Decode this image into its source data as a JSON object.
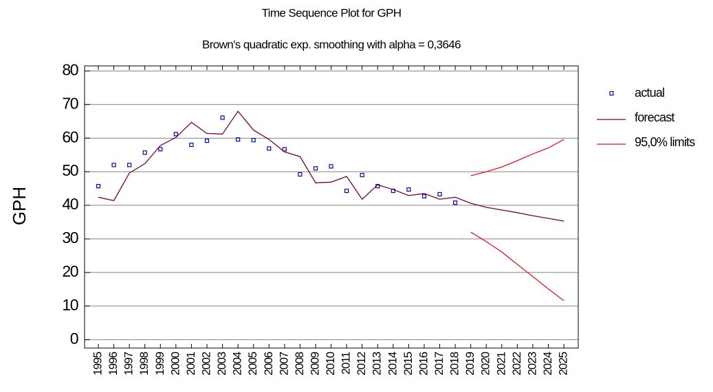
{
  "chart_data": {
    "type": "line",
    "title": "Time Sequence Plot for GPH",
    "subtitle": "Brown's quadratic exp. smoothing with alpha = 0,3646",
    "y_label": "GPH",
    "categories": [
      "1995",
      "1996",
      "1997",
      "1998",
      "1999",
      "2000",
      "2001",
      "2002",
      "2003",
      "2004",
      "2005",
      "2006",
      "2007",
      "2008",
      "2009",
      "2010",
      "2011",
      "2012",
      "2013",
      "2014",
      "2015",
      "2016",
      "2017",
      "2018",
      "2019",
      "2020",
      "2021",
      "2022",
      "2023",
      "2024",
      "2025"
    ],
    "series": [
      {
        "name": "actual",
        "color": "#0000cc",
        "marker": "square",
        "values": [
          45.7,
          52,
          52,
          55.7,
          56.7,
          61.2,
          58,
          59.2,
          66.1,
          59.6,
          59.4,
          56.9,
          56.7,
          49.2,
          51,
          51.6,
          44.3,
          49,
          45.7,
          44.3,
          44.7,
          42.7,
          43.3,
          40.8,
          null,
          null,
          null,
          null,
          null,
          null,
          null
        ]
      },
      {
        "name": "forecast",
        "color": "#7a0030",
        "marker": "line",
        "values": [
          42.4,
          41.4,
          49.6,
          52.4,
          57.8,
          60.2,
          64.7,
          61.4,
          61.2,
          68,
          62.4,
          59.6,
          55.9,
          54.5,
          46.7,
          46.9,
          48.6,
          41.8,
          46.1,
          44.7,
          42.9,
          43.5,
          41.8,
          42.4,
          40.6,
          39.4,
          38.6,
          37.8,
          36.9,
          36.1,
          35.3
        ]
      },
      {
        "name": "95,0% limits",
        "color": "#e8141e",
        "marker": "line",
        "upper": [
          null,
          null,
          null,
          null,
          null,
          null,
          null,
          null,
          null,
          null,
          null,
          null,
          null,
          null,
          null,
          null,
          null,
          null,
          null,
          null,
          null,
          null,
          null,
          null,
          48.8,
          50,
          51.4,
          53.3,
          55.3,
          57.1,
          59.6
        ],
        "lower": [
          null,
          null,
          null,
          null,
          null,
          null,
          null,
          null,
          null,
          null,
          null,
          null,
          null,
          null,
          null,
          null,
          null,
          null,
          null,
          null,
          null,
          null,
          null,
          null,
          32,
          29.2,
          26.1,
          22.4,
          18.8,
          15.1,
          11.6
        ]
      }
    ],
    "ylim": [
      -2.5,
      81.5
    ],
    "yticks": [
      0,
      10,
      20,
      30,
      40,
      50,
      60,
      70,
      80
    ],
    "grid": true,
    "legend": "right"
  }
}
